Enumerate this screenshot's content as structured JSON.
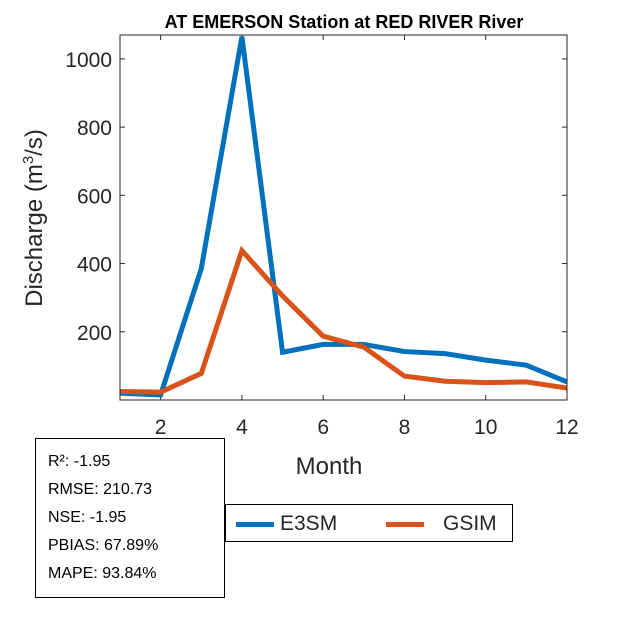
{
  "chart_data": {
    "type": "line",
    "title": "AT EMERSON  Station at  RED RIVER  River",
    "xlabel": "Month",
    "ylabel_main": "Discharge (m",
    "ylabel_sup": "3",
    "ylabel_tail": "/s)",
    "x": [
      1,
      2,
      3,
      4,
      5,
      6,
      7,
      8,
      9,
      10,
      11,
      12
    ],
    "xlim": [
      1,
      12
    ],
    "ylim": [
      0,
      1070
    ],
    "xticks": [
      2,
      4,
      6,
      8,
      10,
      12
    ],
    "yticks": [
      200,
      400,
      600,
      800,
      1000
    ],
    "series": [
      {
        "name": "E3SM",
        "color": "#0072BD",
        "values": [
          20,
          15,
          385,
          1065,
          140,
          163,
          163,
          142,
          136,
          117,
          102,
          53
        ]
      },
      {
        "name": "GSIM",
        "color": "#D95319",
        "values": [
          25,
          23,
          78,
          438,
          305,
          187,
          155,
          70,
          55,
          51,
          53,
          35
        ]
      }
    ]
  },
  "stats": {
    "r2": "R²: -1.95",
    "rmse": "RMSE: 210.73",
    "nse": "NSE: -1.95",
    "pbias": "PBIAS: 67.89%",
    "mape": "MAPE: 93.84%"
  },
  "legend": {
    "e3sm_label": "E3SM",
    "gsim_label": "GSIM",
    "e3sm_color": "#0072BD",
    "gsim_color": "#D95319"
  }
}
